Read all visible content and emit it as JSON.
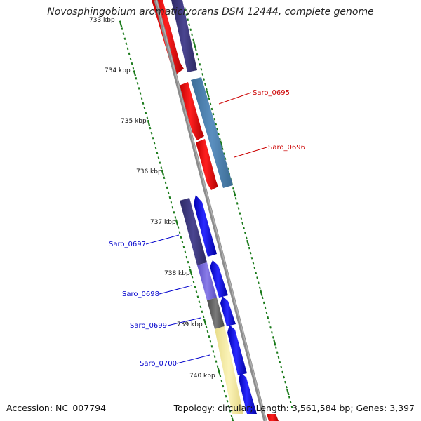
{
  "title": "Novosphingobium aromaticivorans DSM 12444, complete genome",
  "footer": {
    "accession": "Accession: NC_007794",
    "summary": "Topology: circular; Length: 3,561,584 bp; Genes: 3,397"
  },
  "tick_labels": [
    "733 kbp",
    "734 kbp",
    "735 kbp",
    "736 kbp",
    "737 kbp",
    "738 kbp",
    "739 kbp",
    "740 kbp"
  ],
  "gene_labels": [
    {
      "name": "Saro_0695",
      "color": "#cc0000"
    },
    {
      "name": "Saro_0696",
      "color": "#cc0000"
    },
    {
      "name": "Saro_0697",
      "color": "#0000cc"
    },
    {
      "name": "Saro_0698",
      "color": "#0000cc"
    },
    {
      "name": "Saro_0699",
      "color": "#0000cc"
    },
    {
      "name": "Saro_0700",
      "color": "#0000cc"
    }
  ],
  "colors": {
    "forward_cds": "#ff0000",
    "reverse_cds": "#0000ff",
    "backbone": "#8c8c8c",
    "tick": "#1a7a1a"
  }
}
